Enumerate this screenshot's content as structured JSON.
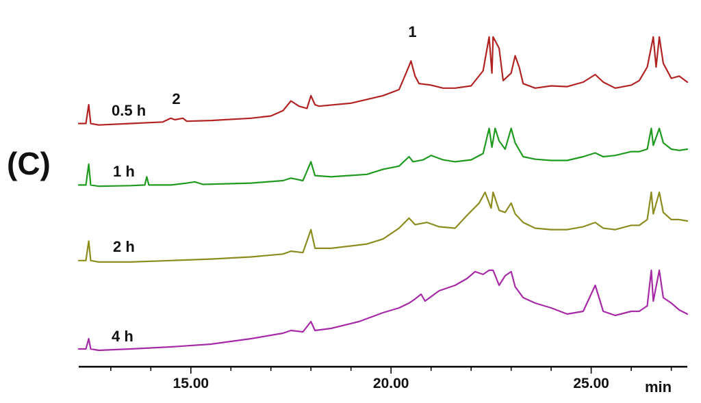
{
  "panel_label": "(C)",
  "chart_data": {
    "type": "line",
    "x_unit": "min",
    "xlim": [
      12.2,
      27.4
    ],
    "x_ticks": [
      {
        "value": 15,
        "label": "15.00"
      },
      {
        "value": 20,
        "label": "20.00"
      },
      {
        "value": 25,
        "label": "25.00"
      }
    ],
    "grid": false,
    "y_axis_shown": false,
    "series": [
      {
        "name": "0.5 h",
        "color": "#b22222",
        "points": [
          [
            12.2,
            0.05
          ],
          [
            12.38,
            0.05
          ],
          [
            12.45,
            0.3
          ],
          [
            12.5,
            0.05
          ],
          [
            12.7,
            0.03
          ],
          [
            13.5,
            0.05
          ],
          [
            14.3,
            0.07
          ],
          [
            14.5,
            0.12
          ],
          [
            14.6,
            0.1
          ],
          [
            14.8,
            0.12
          ],
          [
            14.9,
            0.08
          ],
          [
            15.5,
            0.09
          ],
          [
            16.5,
            0.12
          ],
          [
            17.0,
            0.15
          ],
          [
            17.3,
            0.22
          ],
          [
            17.5,
            0.35
          ],
          [
            17.7,
            0.28
          ],
          [
            17.9,
            0.25
          ],
          [
            18.0,
            0.42
          ],
          [
            18.1,
            0.3
          ],
          [
            18.2,
            0.28
          ],
          [
            19.0,
            0.32
          ],
          [
            19.8,
            0.42
          ],
          [
            20.2,
            0.5
          ],
          [
            20.4,
            0.75
          ],
          [
            20.5,
            0.88
          ],
          [
            20.6,
            0.68
          ],
          [
            20.7,
            0.58
          ],
          [
            21.0,
            0.56
          ],
          [
            21.3,
            0.52
          ],
          [
            21.6,
            0.52
          ],
          [
            22.0,
            0.55
          ],
          [
            22.3,
            0.75
          ],
          [
            22.45,
            1.2
          ],
          [
            22.52,
            0.72
          ],
          [
            22.55,
            1.2
          ],
          [
            22.7,
            1.05
          ],
          [
            22.8,
            0.62
          ],
          [
            23.0,
            0.72
          ],
          [
            23.1,
            0.95
          ],
          [
            23.2,
            0.8
          ],
          [
            23.3,
            0.58
          ],
          [
            23.6,
            0.52
          ],
          [
            24.0,
            0.55
          ],
          [
            24.4,
            0.54
          ],
          [
            24.8,
            0.6
          ],
          [
            25.1,
            0.7
          ],
          [
            25.3,
            0.6
          ],
          [
            25.6,
            0.52
          ],
          [
            26.0,
            0.56
          ],
          [
            26.2,
            0.62
          ],
          [
            26.4,
            0.8
          ],
          [
            26.55,
            1.2
          ],
          [
            26.62,
            0.8
          ],
          [
            26.7,
            1.2
          ],
          [
            26.8,
            0.85
          ],
          [
            27.0,
            0.65
          ],
          [
            27.2,
            0.68
          ],
          [
            27.4,
            0.6
          ]
        ]
      },
      {
        "name": "1 h",
        "color": "#1e9a1e",
        "points": [
          [
            12.2,
            0.05
          ],
          [
            12.38,
            0.05
          ],
          [
            12.45,
            0.38
          ],
          [
            12.5,
            0.05
          ],
          [
            12.7,
            0.03
          ],
          [
            13.5,
            0.04
          ],
          [
            13.85,
            0.05
          ],
          [
            13.9,
            0.18
          ],
          [
            13.95,
            0.05
          ],
          [
            14.5,
            0.05
          ],
          [
            14.9,
            0.08
          ],
          [
            15.1,
            0.1
          ],
          [
            15.3,
            0.06
          ],
          [
            16.5,
            0.08
          ],
          [
            17.3,
            0.12
          ],
          [
            17.5,
            0.16
          ],
          [
            17.8,
            0.12
          ],
          [
            18.0,
            0.42
          ],
          [
            18.1,
            0.2
          ],
          [
            18.5,
            0.18
          ],
          [
            19.4,
            0.22
          ],
          [
            19.8,
            0.3
          ],
          [
            20.2,
            0.35
          ],
          [
            20.45,
            0.5
          ],
          [
            20.55,
            0.42
          ],
          [
            20.8,
            0.45
          ],
          [
            21.0,
            0.52
          ],
          [
            21.3,
            0.45
          ],
          [
            21.6,
            0.42
          ],
          [
            22.0,
            0.45
          ],
          [
            22.3,
            0.55
          ],
          [
            22.45,
            0.95
          ],
          [
            22.52,
            0.65
          ],
          [
            22.6,
            0.95
          ],
          [
            22.7,
            0.75
          ],
          [
            22.85,
            0.62
          ],
          [
            23.0,
            0.95
          ],
          [
            23.1,
            0.72
          ],
          [
            23.3,
            0.5
          ],
          [
            23.6,
            0.46
          ],
          [
            24.0,
            0.44
          ],
          [
            24.4,
            0.44
          ],
          [
            24.8,
            0.5
          ],
          [
            25.1,
            0.56
          ],
          [
            25.3,
            0.5
          ],
          [
            25.6,
            0.52
          ],
          [
            26.0,
            0.58
          ],
          [
            26.2,
            0.58
          ],
          [
            26.4,
            0.62
          ],
          [
            26.5,
            0.95
          ],
          [
            26.55,
            0.68
          ],
          [
            26.7,
            0.95
          ],
          [
            26.8,
            0.72
          ],
          [
            27.0,
            0.62
          ],
          [
            27.2,
            0.6
          ],
          [
            27.4,
            0.62
          ]
        ]
      },
      {
        "name": "2 h",
        "color": "#8b8b1e",
        "points": [
          [
            12.2,
            0.05
          ],
          [
            12.38,
            0.05
          ],
          [
            12.45,
            0.32
          ],
          [
            12.5,
            0.05
          ],
          [
            12.7,
            0.03
          ],
          [
            13.5,
            0.03
          ],
          [
            14.5,
            0.05
          ],
          [
            15.5,
            0.07
          ],
          [
            16.5,
            0.1
          ],
          [
            17.3,
            0.14
          ],
          [
            17.5,
            0.18
          ],
          [
            17.8,
            0.16
          ],
          [
            18.0,
            0.48
          ],
          [
            18.1,
            0.22
          ],
          [
            18.5,
            0.22
          ],
          [
            19.4,
            0.28
          ],
          [
            19.8,
            0.35
          ],
          [
            20.2,
            0.5
          ],
          [
            20.45,
            0.64
          ],
          [
            20.6,
            0.55
          ],
          [
            20.9,
            0.58
          ],
          [
            21.2,
            0.52
          ],
          [
            21.6,
            0.5
          ],
          [
            21.9,
            0.68
          ],
          [
            22.2,
            0.85
          ],
          [
            22.35,
            1.0
          ],
          [
            22.5,
            0.78
          ],
          [
            22.55,
            1.0
          ],
          [
            22.7,
            0.75
          ],
          [
            22.85,
            0.72
          ],
          [
            23.0,
            0.85
          ],
          [
            23.1,
            0.7
          ],
          [
            23.3,
            0.58
          ],
          [
            23.6,
            0.5
          ],
          [
            24.0,
            0.48
          ],
          [
            24.4,
            0.48
          ],
          [
            24.8,
            0.52
          ],
          [
            25.1,
            0.58
          ],
          [
            25.3,
            0.5
          ],
          [
            25.6,
            0.48
          ],
          [
            26.0,
            0.54
          ],
          [
            26.2,
            0.54
          ],
          [
            26.4,
            0.62
          ],
          [
            26.5,
            1.0
          ],
          [
            26.55,
            0.7
          ],
          [
            26.7,
            1.0
          ],
          [
            26.8,
            0.72
          ],
          [
            27.0,
            0.62
          ],
          [
            27.2,
            0.62
          ],
          [
            27.4,
            0.6
          ]
        ]
      },
      {
        "name": "4 h",
        "color": "#a62aa6",
        "points": [
          [
            12.2,
            0.05
          ],
          [
            12.38,
            0.05
          ],
          [
            12.45,
            0.2
          ],
          [
            12.5,
            0.05
          ],
          [
            12.7,
            0.03
          ],
          [
            13.5,
            0.05
          ],
          [
            14.5,
            0.08
          ],
          [
            15.5,
            0.12
          ],
          [
            16.5,
            0.2
          ],
          [
            17.3,
            0.28
          ],
          [
            17.5,
            0.32
          ],
          [
            17.8,
            0.3
          ],
          [
            18.0,
            0.45
          ],
          [
            18.1,
            0.32
          ],
          [
            18.5,
            0.35
          ],
          [
            19.2,
            0.45
          ],
          [
            19.8,
            0.58
          ],
          [
            20.2,
            0.65
          ],
          [
            20.45,
            0.72
          ],
          [
            20.6,
            0.78
          ],
          [
            20.75,
            0.85
          ],
          [
            20.85,
            0.75
          ],
          [
            21.2,
            0.9
          ],
          [
            21.6,
            0.98
          ],
          [
            21.9,
            1.08
          ],
          [
            22.1,
            1.18
          ],
          [
            22.3,
            1.14
          ],
          [
            22.45,
            1.2
          ],
          [
            22.5,
            1.2
          ],
          [
            22.55,
            1.2
          ],
          [
            22.7,
            0.98
          ],
          [
            22.85,
            1.12
          ],
          [
            23.0,
            1.18
          ],
          [
            23.1,
            0.96
          ],
          [
            23.3,
            0.8
          ],
          [
            23.6,
            0.72
          ],
          [
            24.0,
            0.65
          ],
          [
            24.4,
            0.56
          ],
          [
            24.8,
            0.6
          ],
          [
            25.1,
            0.98
          ],
          [
            25.3,
            0.6
          ],
          [
            25.6,
            0.54
          ],
          [
            26.0,
            0.6
          ],
          [
            26.2,
            0.6
          ],
          [
            26.4,
            0.68
          ],
          [
            26.5,
            1.2
          ],
          [
            26.55,
            0.75
          ],
          [
            26.7,
            1.2
          ],
          [
            26.8,
            0.8
          ],
          [
            27.0,
            0.72
          ],
          [
            27.2,
            0.62
          ],
          [
            27.4,
            0.56
          ]
        ]
      }
    ],
    "annotations": [
      {
        "text": "1",
        "series": "0.5 h",
        "x": 20.5
      },
      {
        "text": "2",
        "series": "0.5 h",
        "x": 14.6
      }
    ]
  }
}
